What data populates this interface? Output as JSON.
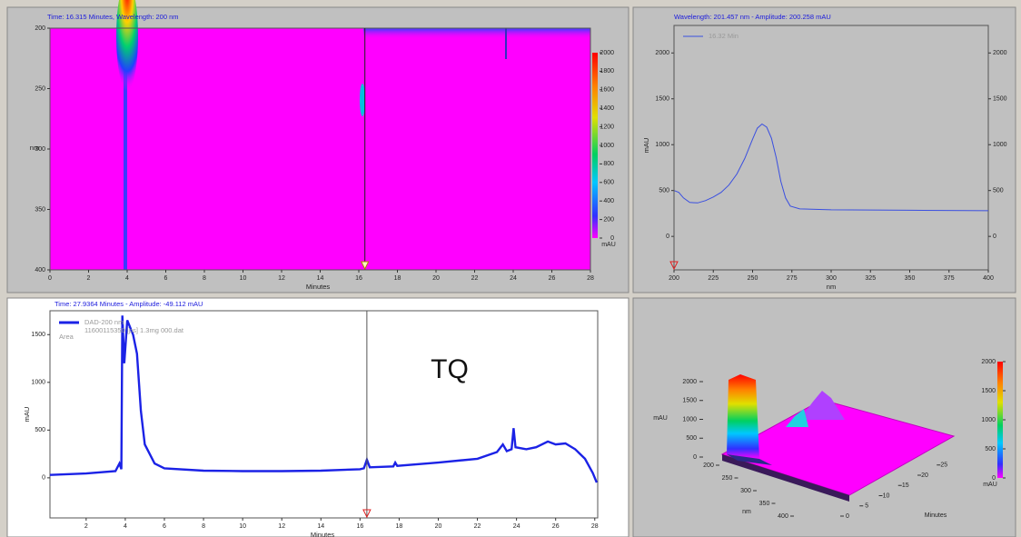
{
  "chart_data": [
    {
      "type": "heatmap",
      "title": "Time: 16.315 Minutes, Wavelength: 200 nm",
      "x_label": "Minutes",
      "y_label": "nm",
      "xlim": [
        0,
        28
      ],
      "xticks": [
        0,
        2,
        4,
        6,
        8,
        10,
        12,
        14,
        16,
        18,
        20,
        22,
        24,
        26,
        28
      ],
      "ylim": [
        200,
        400
      ],
      "y_inverted": true,
      "yticks": [
        200,
        250,
        300,
        350,
        400
      ],
      "cursor_x": 16.315,
      "colorbar": {
        "label": "mAU",
        "lim": [
          0,
          2000
        ],
        "ticks": [
          0,
          200,
          400,
          600,
          800,
          1000,
          1200,
          1400,
          1600,
          1800,
          2000
        ]
      }
    },
    {
      "type": "line",
      "title": "Wavelength: 201.457 nm - Amplitude: 200.258 mAU",
      "x_label": "nm",
      "y_label": "mAU",
      "xlim": [
        200,
        400
      ],
      "xticks": [
        200,
        225,
        250,
        275,
        300,
        325,
        350,
        375,
        400
      ],
      "ylim": [
        -365,
        2300
      ],
      "yticks": [
        0,
        500,
        1000,
        1500,
        2000
      ],
      "right_axis": true,
      "cursor_x": 200,
      "series": [
        {
          "name": "16.32 Min",
          "color": "#3a4fe0",
          "x": [
            200,
            203,
            206,
            210,
            215,
            220,
            225,
            230,
            235,
            240,
            245,
            250,
            253,
            256,
            259,
            262,
            265,
            268,
            271,
            274,
            280,
            300,
            350,
            400
          ],
          "values": [
            500,
            480,
            420,
            370,
            365,
            390,
            430,
            480,
            560,
            680,
            850,
            1060,
            1180,
            1225,
            1190,
            1070,
            860,
            600,
            420,
            330,
            300,
            290,
            285,
            280
          ]
        }
      ]
    },
    {
      "type": "line",
      "title": "Time: 27.9364 Minutes - Amplitude: -49.112 mAU",
      "x_label": "Minutes",
      "y_label": "mAU",
      "xlim": [
        0.15,
        28.15
      ],
      "xticks": [
        2,
        4,
        6,
        8,
        10,
        12,
        14,
        16,
        18,
        20,
        22,
        24,
        26,
        28
      ],
      "ylim": [
        -420,
        1750
      ],
      "yticks": [
        0,
        500,
        1000,
        1500
      ],
      "cursor_x": 16.35,
      "legend_file": "11600115350 [ps] 1.3mg 000.dat",
      "legend_note": "Area",
      "annotation": "TQ",
      "series": [
        {
          "name": "DAD-200 nm",
          "color": "#1b22e6",
          "x": [
            0.15,
            2,
            3.5,
            3.7,
            3.8,
            3.85,
            3.95,
            4.1,
            4.4,
            4.6,
            4.8,
            5,
            5.5,
            6,
            8,
            10,
            12,
            14,
            16,
            16.2,
            16.35,
            16.5,
            17.7,
            17.8,
            17.9,
            20,
            22,
            23,
            23.3,
            23.5,
            23.75,
            23.85,
            23.95,
            24.5,
            25,
            25.6,
            26,
            26.5,
            27,
            27.5,
            27.9,
            28.1
          ],
          "values": [
            30,
            45,
            70,
            150,
            90,
            1700,
            1200,
            1650,
            1500,
            1300,
            700,
            350,
            150,
            100,
            75,
            70,
            70,
            75,
            90,
            100,
            190,
            110,
            120,
            160,
            125,
            160,
            200,
            270,
            350,
            280,
            300,
            520,
            320,
            300,
            320,
            380,
            350,
            360,
            300,
            200,
            50,
            -50
          ]
        }
      ]
    },
    {
      "type": "surface3d",
      "z_label": "mAU",
      "zlim": [
        0,
        2000
      ],
      "zticks": [
        0,
        500,
        1000,
        1500,
        2000
      ],
      "y_label": "nm",
      "ylim": [
        200,
        400
      ],
      "yticks": [
        200,
        250,
        300,
        350,
        400
      ],
      "x_label": "Minutes",
      "xlim": [
        0,
        28
      ],
      "xticks": [
        0,
        5,
        10,
        15,
        20,
        25
      ],
      "colorbar": {
        "label": "mAU",
        "lim": [
          0,
          2000
        ],
        "ticks": [
          0,
          500,
          1000,
          1500,
          2000
        ]
      }
    }
  ]
}
